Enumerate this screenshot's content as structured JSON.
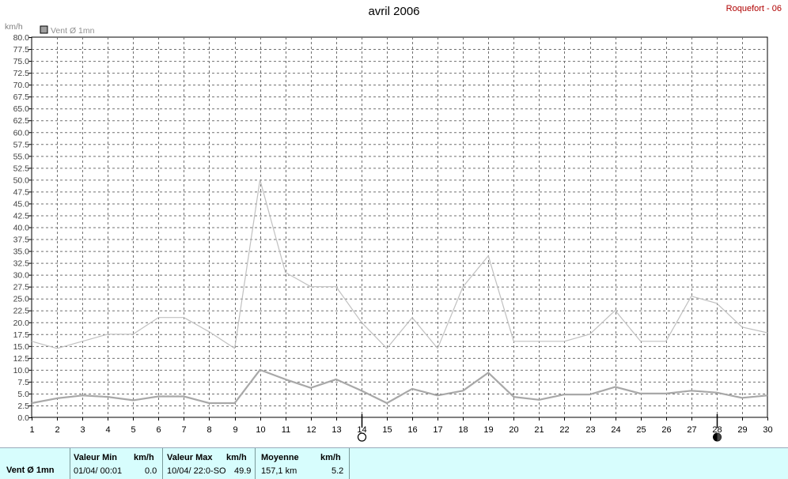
{
  "header": {
    "title": "avril 2006",
    "site": "Roquefort - 06"
  },
  "colors": {
    "axis": "#000000",
    "grid": "#707070",
    "series_max": "#c0c0c0",
    "series_avg": "#a8a8a8",
    "legend_swatch": "#a0a0a0",
    "footer_bg": "#d7fdfd"
  },
  "chart_data": {
    "type": "line",
    "title": "avril 2006",
    "ylabel": "km/h",
    "ylim": [
      0,
      80
    ],
    "ystep": 2.5,
    "x": [
      1,
      2,
      3,
      4,
      5,
      6,
      7,
      8,
      9,
      10,
      11,
      12,
      13,
      14,
      15,
      16,
      17,
      18,
      19,
      20,
      21,
      22,
      23,
      24,
      25,
      26,
      27,
      28,
      29,
      30
    ],
    "legend": [
      "Vent Ø 1mn"
    ],
    "series": [
      {
        "name": "Vent Ø 1mn",
        "values": [
          3.0,
          4.0,
          4.6,
          4.3,
          3.6,
          4.4,
          4.4,
          3.0,
          3.0,
          10.0,
          8.0,
          6.2,
          8.0,
          5.6,
          3.0,
          6.0,
          4.6,
          5.6,
          9.4,
          4.3,
          3.7,
          4.8,
          4.8,
          6.4,
          5.0,
          5.0,
          5.6,
          5.2,
          4.1,
          4.6
        ]
      },
      {
        "values": [
          16.0,
          14.5,
          16.0,
          17.5,
          17.5,
          21.0,
          21.0,
          18.0,
          14.5,
          50.0,
          30.5,
          27.5,
          27.5,
          20.0,
          14.5,
          21.0,
          14.5,
          27.5,
          34.0,
          16.0,
          16.0,
          16.0,
          17.5,
          22.5,
          16.0,
          16.0,
          25.5,
          24.0,
          19.0,
          17.8
        ]
      }
    ],
    "markers": [
      {
        "x": 14,
        "type": "new-moon"
      },
      {
        "x": 28,
        "type": "full-moon"
      }
    ],
    "grid": true
  },
  "footer": {
    "label": "Vent Ø 1mn",
    "min": {
      "head": "Valeur Min",
      "unit": "km/h",
      "date": "01/04/  00:01",
      "value": "0.0"
    },
    "max": {
      "head": "Valeur Max",
      "unit": "km/h",
      "date": "10/04/  22:0-SO",
      "value": "49.9"
    },
    "avg": {
      "head": "Moyenne",
      "unit": "km/h",
      "dist": "157,1 km",
      "value": "5.2"
    }
  }
}
